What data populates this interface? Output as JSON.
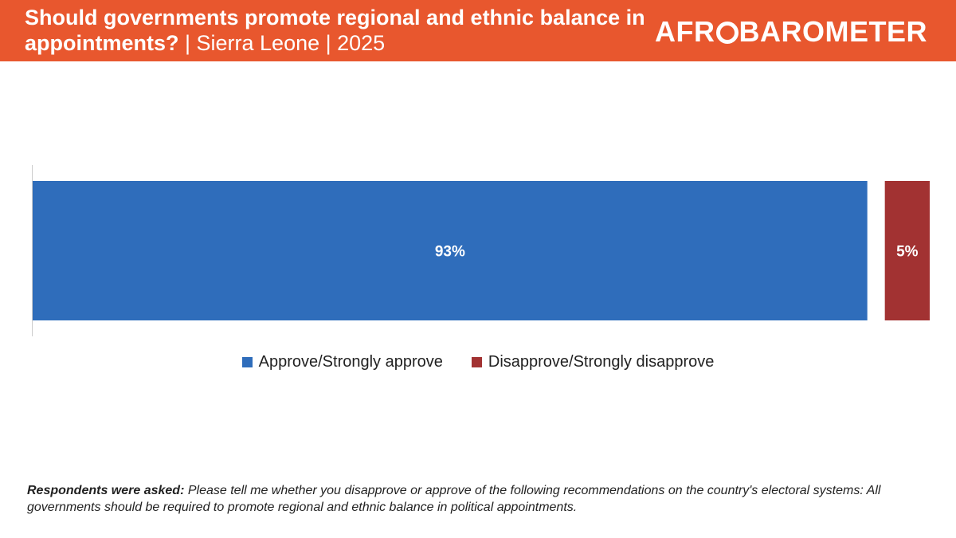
{
  "header": {
    "title": "Should governments promote regional and ethnic balance in appointments?",
    "subtitle": " | Sierra Leone | 2025",
    "logo_text_left": "AFR",
    "logo_text_right": "BAROMETER"
  },
  "chart_data": {
    "type": "bar",
    "orientation": "horizontal-stacked",
    "categories": [
      ""
    ],
    "series": [
      {
        "name": "Approve/Strongly approve",
        "values": [
          93
        ],
        "color": "#2f6dbb"
      },
      {
        "name": "Disapprove/Strongly disapprove",
        "values": [
          5
        ],
        "color": "#a23232"
      }
    ],
    "data_labels": [
      "93%",
      "5%"
    ],
    "legend_position": "bottom",
    "grid": false
  },
  "footnote": {
    "lead": "Respondents were asked:",
    "text": " Please tell me whether you disapprove or approve of the following recommendations on the country's electoral systems: All governments should be required to promote regional and ethnic balance in political appointments."
  }
}
